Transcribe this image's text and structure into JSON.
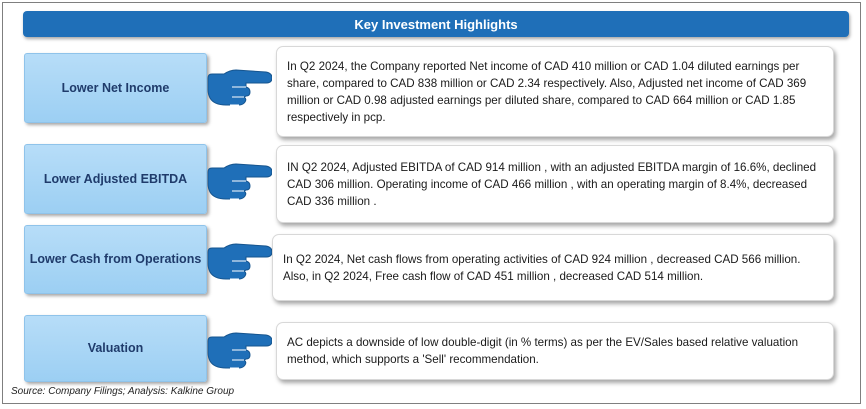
{
  "header": {
    "title": "Key Investment Highlights"
  },
  "rows": [
    {
      "label": "Lower Net Income",
      "text": "In Q2 2024, the Company reported  Net income of CAD 410 million or CAD 1.04 diluted earnings per share, compared to CAD 838 million or CAD 2.34 respectively. Also, Adjusted net income of CAD 369 million or CAD 0.98 adjusted earnings per diluted share, compared to CAD 664 million or CAD 1.85 respectively in pcp."
    },
    {
      "label": "Lower Adjusted EBITDA",
      "text": "IN Q2 2024,  Adjusted EBITDA of CAD 914 million , with an adjusted EBITDA margin of 16.6%, declined CAD 306 million. Operating income of CAD 466 million , with an operating margin of 8.4%, decreased CAD 336 million ."
    },
    {
      "label": "Lower Cash from Operations",
      "text": "In Q2 2024,  Net cash flows from operating activities of CAD 924 million , decreased CAD 566 million. Also, in Q2 2024,  Free cash flow of CAD 451 million , decreased CAD 514 million."
    },
    {
      "label": "Valuation",
      "text": "AC depicts a downside of low double-digit (in % terms) as per the EV/Sales based relative valuation method, which supports a 'Sell' recommendation."
    }
  ],
  "footer": {
    "source": "Source: Company Filings; Analysis: Kalkine Group"
  },
  "colors": {
    "header_bg": "#1f6fb8",
    "label_bg": "#9ccff3",
    "hand": "#1f6fb8"
  },
  "icons": {
    "pointer": "pointing-hand-icon"
  }
}
